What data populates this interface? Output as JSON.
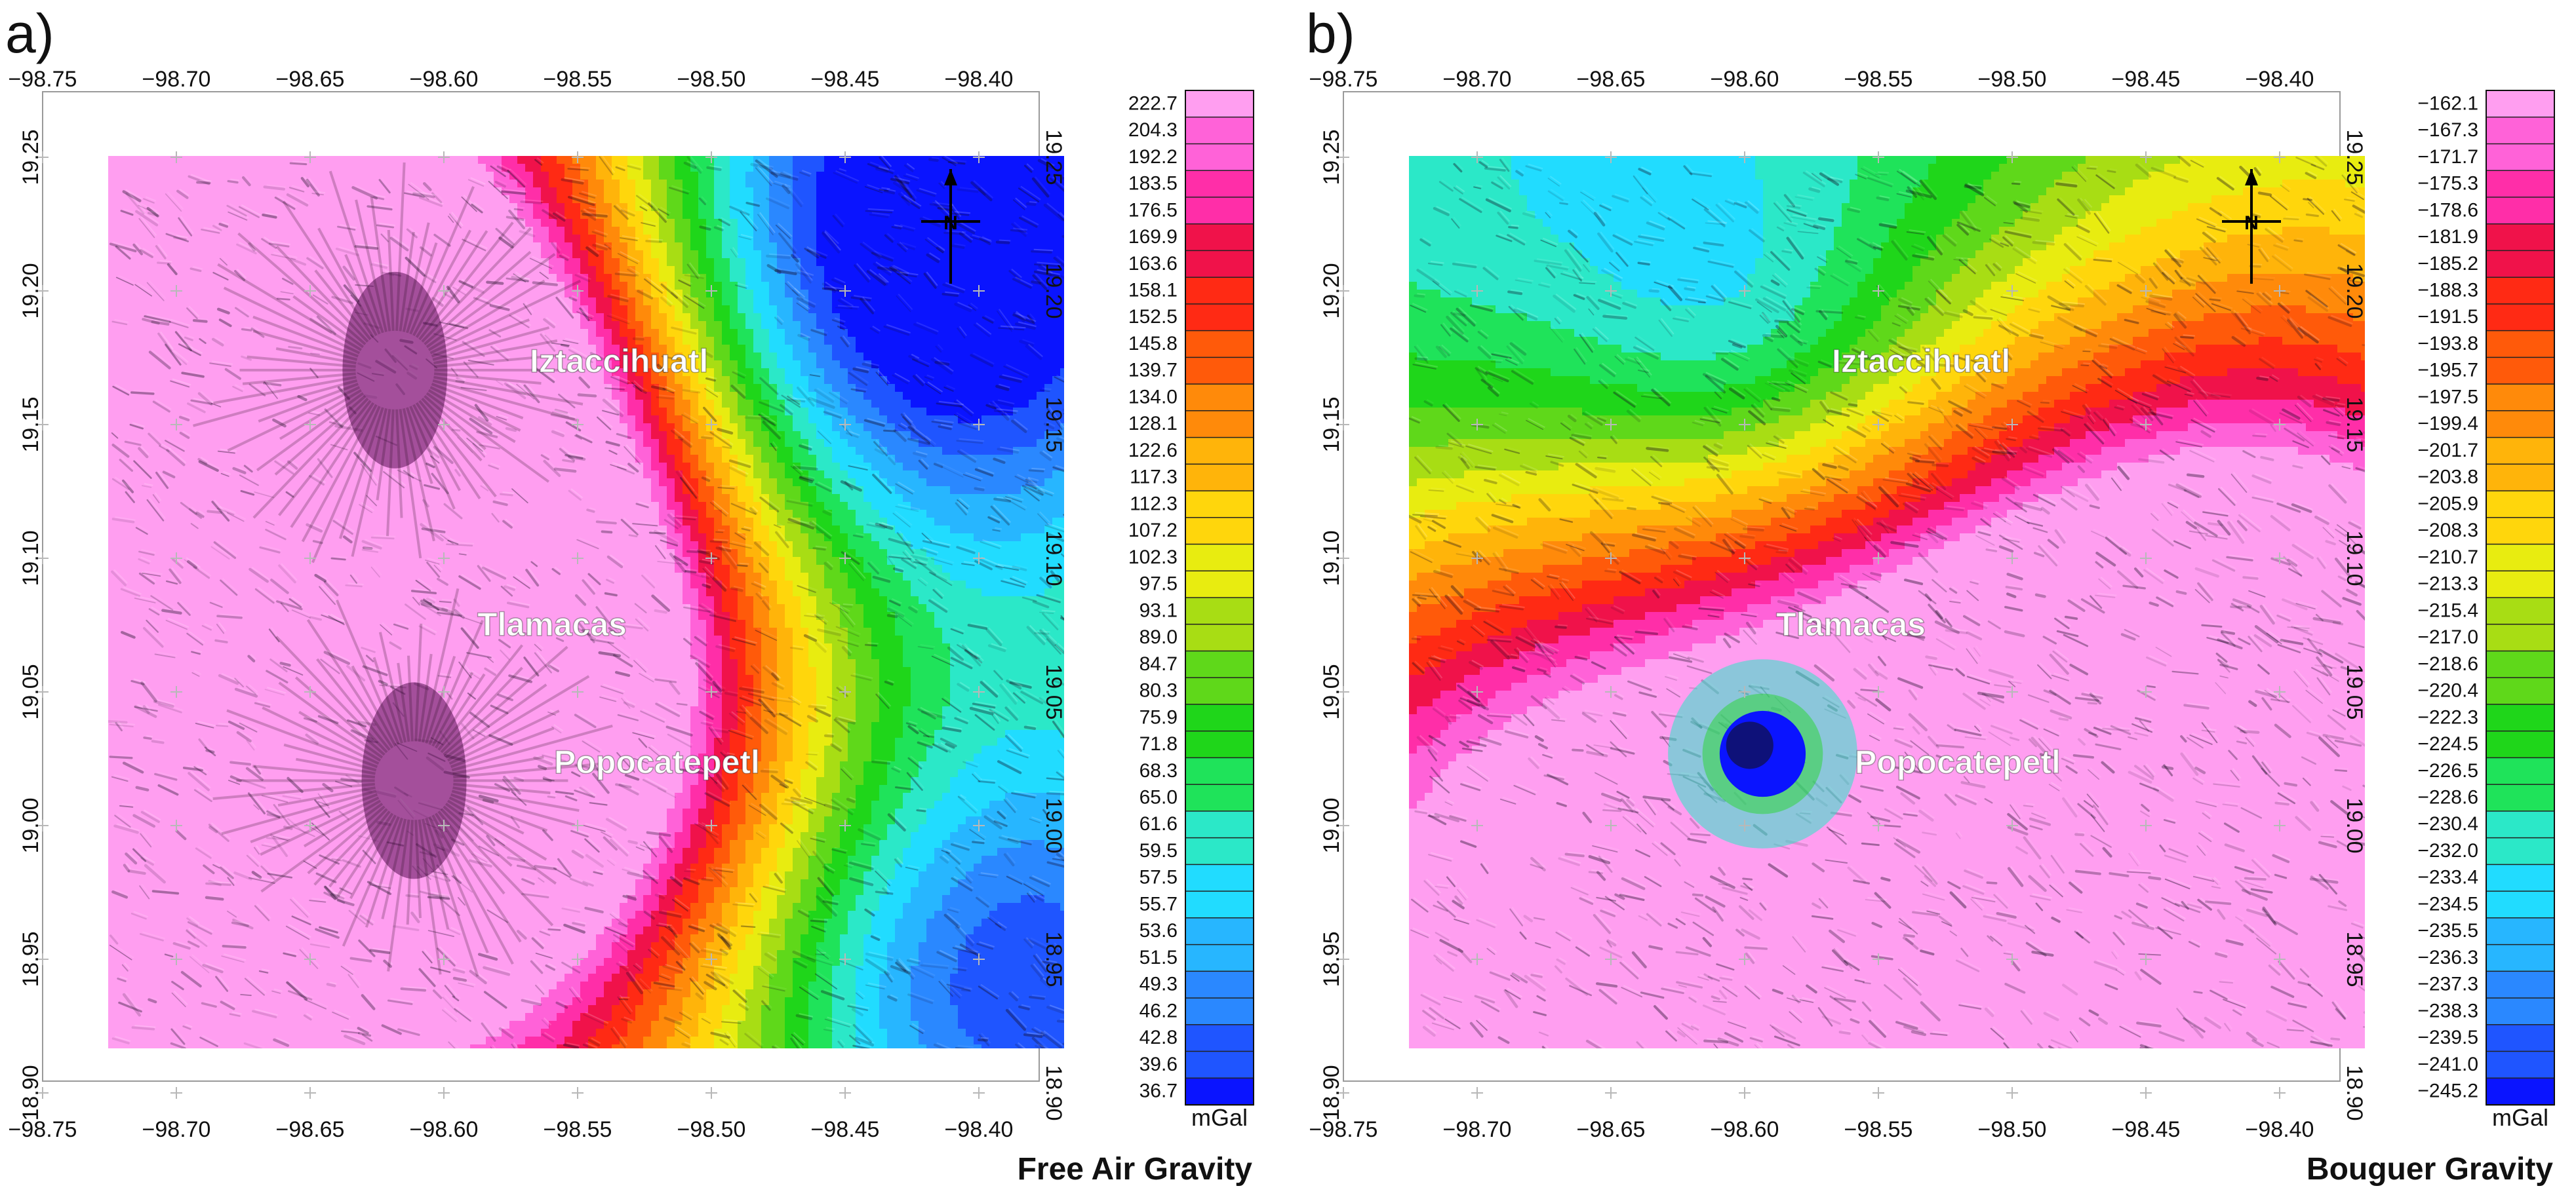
{
  "palette": [
    "#0a14ff",
    "#1f55ff",
    "#2a88ff",
    "#27b6ff",
    "#21dcff",
    "#2be8c8",
    "#1fe35a",
    "#1fd61a",
    "#5fd81a",
    "#a8dd14",
    "#e8ec10",
    "#ffd60c",
    "#ffb40a",
    "#ff8a0a",
    "#ff5a0a",
    "#ff2a14",
    "#f0124a",
    "#ff2ea8",
    "#ff62d8",
    "#ff9ef0"
  ],
  "shade": {
    "dark": "#140a20",
    "light": "#ffffff"
  },
  "panels": [
    {
      "letter": "a)",
      "title": "Free Air Gravity",
      "unit": "mGal",
      "x_ticks": [
        "−98.75",
        "−98.70",
        "−98.65",
        "−98.60",
        "−98.55",
        "−98.50",
        "−98.45",
        "−98.40"
      ],
      "y_ticks": [
        "19.25",
        "19.20",
        "19.15",
        "19.10",
        "19.05",
        "19.00",
        "18.95",
        "18.90"
      ],
      "scale_labels": [
        "222.7",
        "204.3",
        "192.2",
        "183.5",
        "176.5",
        "169.9",
        "163.6",
        "158.1",
        "152.5",
        "145.8",
        "139.7",
        "134.0",
        "128.1",
        "122.6",
        "117.3",
        "112.3",
        "107.2",
        "102.3",
        "97.5",
        "93.1",
        "89.0",
        "84.7",
        "80.3",
        "75.9",
        "71.8",
        "68.3",
        "65.0",
        "61.6",
        "59.5",
        "57.5",
        "55.7",
        "53.6",
        "51.5",
        "49.3",
        "46.2",
        "42.8",
        "39.6",
        "36.7"
      ],
      "places": [
        {
          "name": "Iztaccihuatl"
        },
        {
          "name": "Tlamacas"
        },
        {
          "name": "Popocatepetl"
        }
      ],
      "north_arrow_letter": "N"
    },
    {
      "letter": "b)",
      "title": "Bouguer Gravity",
      "unit": "mGal",
      "x_ticks": [
        "−98.75",
        "−98.70",
        "−98.65",
        "−98.60",
        "−98.55",
        "−98.50",
        "−98.45",
        "−98.40"
      ],
      "y_ticks": [
        "19.25",
        "19.20",
        "19.15",
        "19.10",
        "19.05",
        "19.00",
        "18.95",
        "18.90"
      ],
      "scale_labels": [
        "−162.1",
        "−167.3",
        "−171.7",
        "−175.3",
        "−178.6",
        "−181.9",
        "−185.2",
        "−188.3",
        "−191.5",
        "−193.8",
        "−195.7",
        "−197.5",
        "−199.4",
        "−201.7",
        "−203.8",
        "−205.9",
        "−208.3",
        "−210.7",
        "−213.3",
        "−215.4",
        "−217.0",
        "−218.6",
        "−220.4",
        "−222.3",
        "−224.5",
        "−226.5",
        "−228.6",
        "−230.4",
        "−232.0",
        "−233.4",
        "−234.5",
        "−235.5",
        "−236.3",
        "−237.3",
        "−238.3",
        "−239.5",
        "−241.0",
        "−245.2"
      ],
      "places": [
        {
          "name": "Iztaccihuatl"
        },
        {
          "name": "Tlamacas"
        },
        {
          "name": "Popocatepetl"
        }
      ],
      "north_arrow_letter": "N"
    }
  ]
}
